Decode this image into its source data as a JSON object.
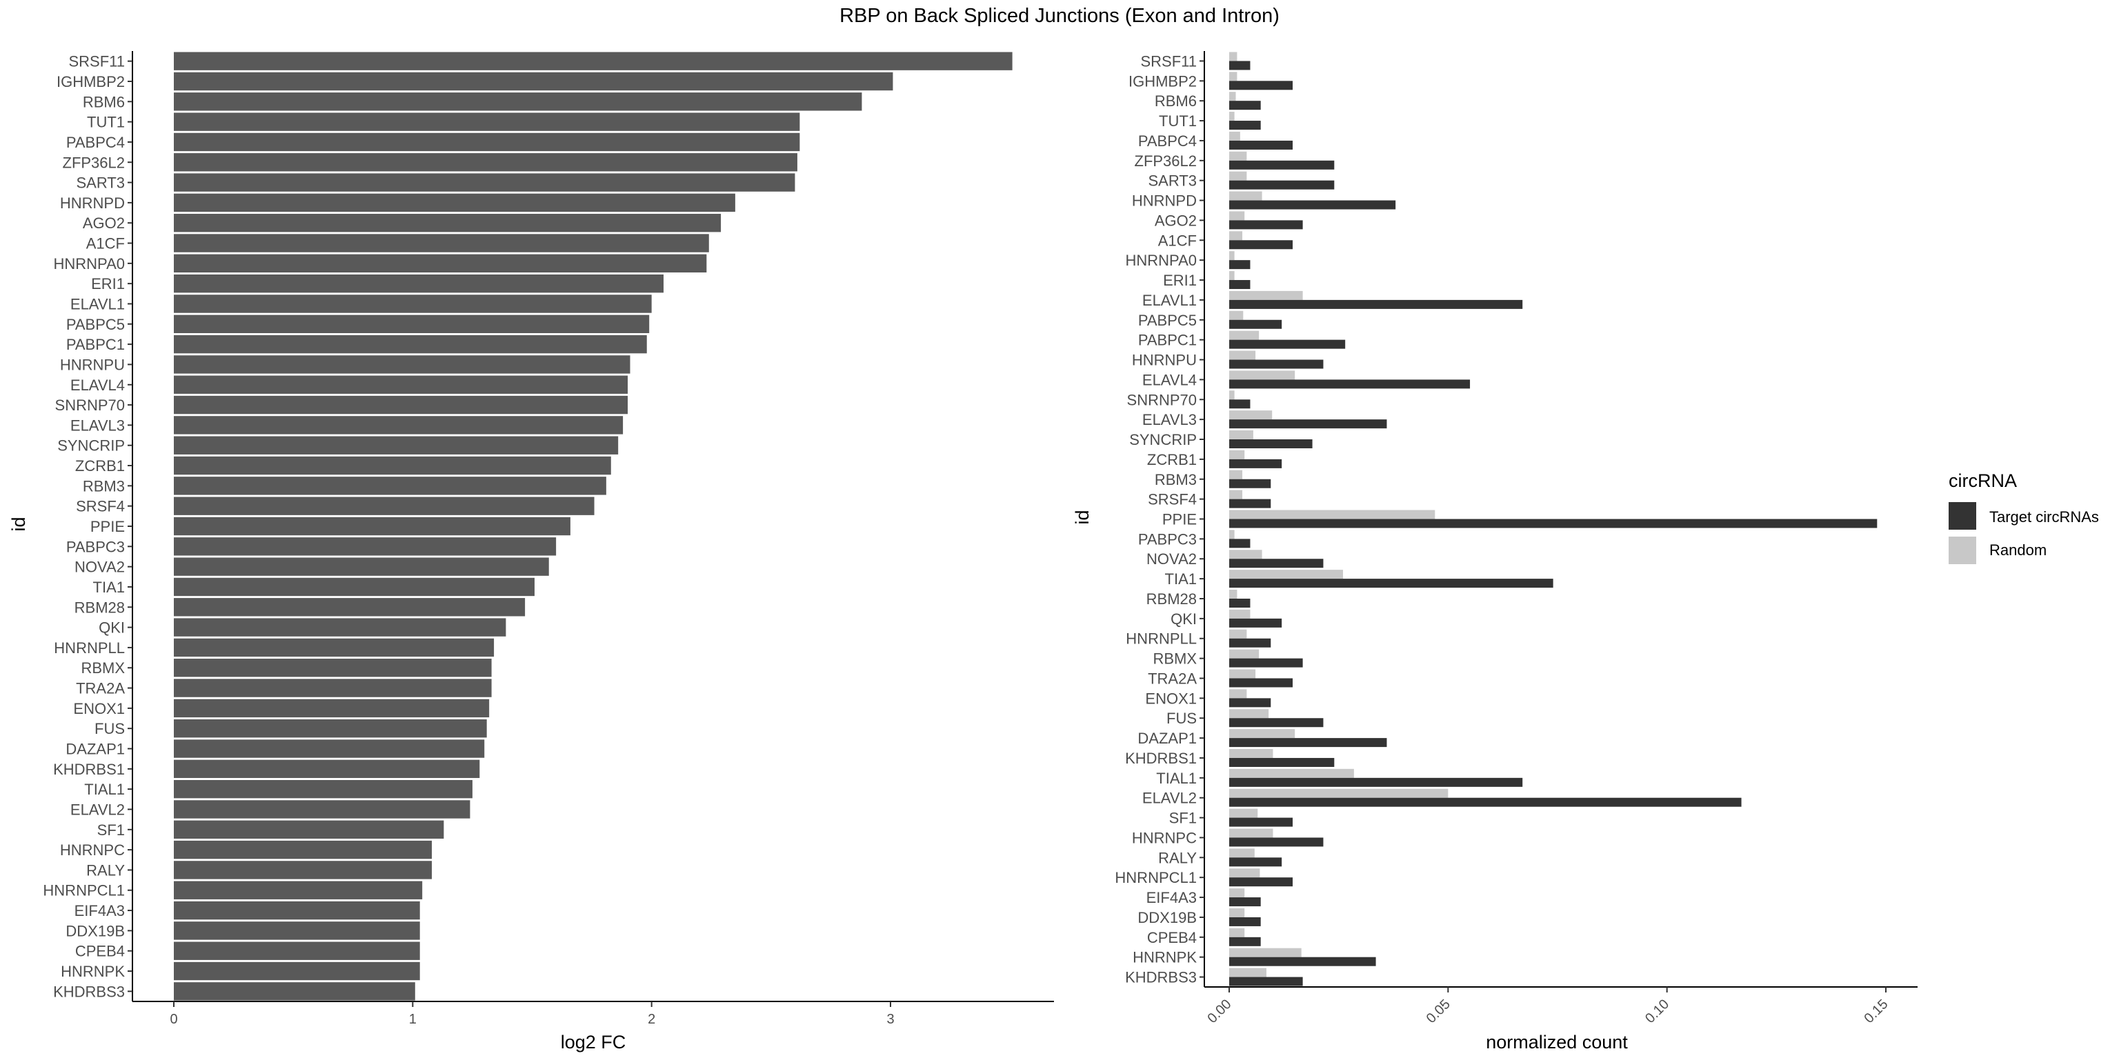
{
  "title": "RBP on Back Spliced Junctions (Exon and Intron)",
  "chart_data": [
    {
      "type": "bar",
      "orientation": "horizontal",
      "xlabel": "log2 FC",
      "ylabel": "id",
      "xlim": [
        0,
        3.7
      ],
      "xticks": [
        "0",
        "1",
        "2",
        "3"
      ],
      "bar_color": "#595959",
      "grid": false,
      "categories": [
        "SRSF11",
        "IGHMBP2",
        "RBM6",
        "TUT1",
        "PABPC4",
        "ZFP36L2",
        "SART3",
        "HNRNPD",
        "AGO2",
        "A1CF",
        "HNRNPA0",
        "ERI1",
        "ELAVL1",
        "PABPC5",
        "PABPC1",
        "HNRNPU",
        "ELAVL4",
        "SNRNP70",
        "ELAVL3",
        "SYNCRIP",
        "ZCRB1",
        "RBM3",
        "SRSF4",
        "PPIE",
        "PABPC3",
        "NOVA2",
        "TIA1",
        "RBM28",
        "QKI",
        "HNRNPLL",
        "RBMX",
        "TRA2A",
        "ENOX1",
        "FUS",
        "DAZAP1",
        "KHDRBS1",
        "TIAL1",
        "ELAVL2",
        "SF1",
        "HNRNPC",
        "RALY",
        "HNRNPCL1",
        "EIF4A3",
        "DDX19B",
        "CPEB4",
        "HNRNPK",
        "KHDRBS3"
      ],
      "values": [
        3.51,
        3.01,
        2.88,
        2.62,
        2.62,
        2.61,
        2.6,
        2.35,
        2.29,
        2.24,
        2.23,
        2.05,
        2.0,
        1.99,
        1.98,
        1.91,
        1.9,
        1.9,
        1.88,
        1.86,
        1.83,
        1.81,
        1.76,
        1.66,
        1.6,
        1.57,
        1.51,
        1.47,
        1.39,
        1.34,
        1.33,
        1.33,
        1.32,
        1.31,
        1.3,
        1.28,
        1.25,
        1.24,
        1.13,
        1.08,
        1.08,
        1.04,
        1.03,
        1.03,
        1.03,
        1.03,
        1.01
      ]
    },
    {
      "type": "bar",
      "orientation": "horizontal",
      "xlabel": "normalized count",
      "ylabel": "id",
      "xlim": [
        -0.001,
        0.155
      ],
      "xticks": [
        "0.00",
        "0.05",
        "0.10",
        "0.15"
      ],
      "grid": false,
      "legend": {
        "title": "circRNA",
        "position": "right"
      },
      "categories": [
        "SRSF11",
        "IGHMBP2",
        "RBM6",
        "TUT1",
        "PABPC4",
        "ZFP36L2",
        "SART3",
        "HNRNPD",
        "AGO2",
        "A1CF",
        "HNRNPA0",
        "ERI1",
        "ELAVL1",
        "PABPC5",
        "PABPC1",
        "HNRNPU",
        "ELAVL4",
        "SNRNP70",
        "ELAVL3",
        "SYNCRIP",
        "ZCRB1",
        "RBM3",
        "SRSF4",
        "PPIE",
        "PABPC3",
        "NOVA2",
        "TIA1",
        "RBM28",
        "QKI",
        "HNRNPLL",
        "RBMX",
        "TRA2A",
        "ENOX1",
        "FUS",
        "DAZAP1",
        "KHDRBS1",
        "TIAL1",
        "ELAVL2",
        "SF1",
        "HNRNPC",
        "RALY",
        "HNRNPCL1",
        "EIF4A3",
        "DDX19B",
        "CPEB4",
        "HNRNPK",
        "KHDRBS3"
      ],
      "series": [
        {
          "name": "Random",
          "color": "#c8c8c8",
          "values": [
            0.0018,
            0.0018,
            0.0015,
            0.0012,
            0.0025,
            0.004,
            0.004,
            0.0075,
            0.0035,
            0.003,
            0.0012,
            0.0012,
            0.0168,
            0.0032,
            0.0068,
            0.006,
            0.015,
            0.0012,
            0.0098,
            0.0055,
            0.0035,
            0.003,
            0.003,
            0.047,
            0.0012,
            0.0075,
            0.026,
            0.0018,
            0.0048,
            0.004,
            0.0068,
            0.006,
            0.004,
            0.009,
            0.015,
            0.01,
            0.0285,
            0.05,
            0.0065,
            0.01,
            0.0058,
            0.007,
            0.0035,
            0.0035,
            0.0035,
            0.0165,
            0.0085
          ]
        },
        {
          "name": "Target circRNAs",
          "color": "#333333",
          "values": [
            0.0048,
            0.0145,
            0.0072,
            0.0072,
            0.0145,
            0.024,
            0.024,
            0.038,
            0.0168,
            0.0145,
            0.0048,
            0.0048,
            0.067,
            0.012,
            0.0265,
            0.0215,
            0.055,
            0.0048,
            0.036,
            0.019,
            0.012,
            0.0095,
            0.0095,
            0.148,
            0.0048,
            0.0215,
            0.074,
            0.0048,
            0.012,
            0.0095,
            0.0168,
            0.0145,
            0.0095,
            0.0215,
            0.036,
            0.024,
            0.067,
            0.117,
            0.0145,
            0.0215,
            0.012,
            0.0145,
            0.0072,
            0.0072,
            0.0072,
            0.0335,
            0.0168
          ]
        }
      ]
    }
  ]
}
